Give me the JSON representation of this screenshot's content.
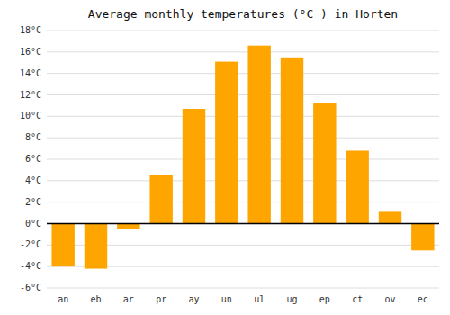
{
  "chart_data": {
    "type": "bar",
    "title": "Average monthly temperatures (°C ) in Horten",
    "categories": [
      "an",
      "eb",
      "ar",
      "pr",
      "ay",
      "un",
      "ul",
      "ug",
      "ep",
      "ct",
      "ov",
      "ec"
    ],
    "values": [
      -4.0,
      -4.2,
      -0.5,
      4.5,
      10.7,
      15.1,
      16.6,
      15.5,
      11.2,
      6.8,
      1.1,
      -2.5
    ],
    "color": "#FFA500",
    "ylim": [
      -6,
      18
    ],
    "yticks": [
      {
        "value": -6,
        "label": "-6°C"
      },
      {
        "value": -4,
        "label": "-4°C"
      },
      {
        "value": -2,
        "label": "-2°C"
      },
      {
        "value": 0,
        "label": "0°C"
      },
      {
        "value": 2,
        "label": "2°C"
      },
      {
        "value": 4,
        "label": "4°C"
      },
      {
        "value": 6,
        "label": "6°C"
      },
      {
        "value": 8,
        "label": "8°C"
      },
      {
        "value": 10,
        "label": "10°C"
      },
      {
        "value": 12,
        "label": "12°C"
      },
      {
        "value": 14,
        "label": "14°C"
      },
      {
        "value": 16,
        "label": "16°C"
      },
      {
        "value": 18,
        "label": "18°C"
      }
    ],
    "grid": true
  }
}
